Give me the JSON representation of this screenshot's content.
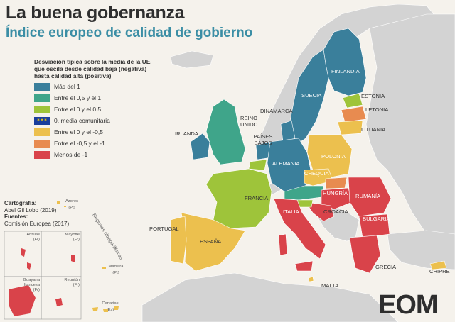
{
  "title": "La buena gobernanza",
  "subtitle": "Índice europeo de calidad de gobierno",
  "legend": {
    "title": "Desviación típica sobre la media de la UE, que oscila desde calidad baja (negativa) hasta calidad alta (positiva)",
    "items": [
      {
        "label": "Más del 1",
        "color": "#3a7f9b"
      },
      {
        "label": "Entre el 0,5 y el 1",
        "color": "#3fa58a"
      },
      {
        "label": "Entre el 0 y el 0.5",
        "color": "#9ec43a"
      },
      {
        "label": "0, media comunitaria",
        "color": "#1a3e9c"
      },
      {
        "label": "Entre el 0 y el -0,5",
        "color": "#ecc04e"
      },
      {
        "label": "Entre el -0,5 y el -1",
        "color": "#e88b50"
      },
      {
        "label": "Menos de -1",
        "color": "#d9434a"
      }
    ]
  },
  "credits": {
    "cartography_label": "Cartografía:",
    "cartography_value": "Abel Gil Lobo (2019)",
    "sources_label": "Fuentes:",
    "sources_value": "Comisión Europea (2017)"
  },
  "countries": {
    "finlandia": "FINLANDIA",
    "suecia": "SUECIA",
    "estonia": "ESTONIA",
    "letonia": "LETONIA",
    "lituania": "LITUANIA",
    "dinamarca": "DINAMARCA",
    "reino_unido": "REINO UNIDO",
    "irlanda": "IRLANDA",
    "paises_bajos": "PAÍSES BAJOS",
    "alemania": "ALEMANIA",
    "polonia": "POLONIA",
    "chequia": "CHEQUIA",
    "hungria": "HUNGRÍA",
    "rumania": "RUMANÍA",
    "bulgaria": "BULGARIA",
    "croacia": "CROACIA",
    "italia": "ITALIA",
    "francia": "FRANCIA",
    "espana": "ESPAÑA",
    "portugal": "PORTUGAL",
    "grecia": "GRECIA",
    "chipre": "CHIPRE",
    "malta": "MALTA"
  },
  "outermost": {
    "regions_label": "Regiones ultraperiféricas",
    "azores": "Azores (Pt)",
    "madeira": "Madeira (Pt)",
    "canarias": "Canarias (Es)",
    "antillas": "Antillas (Fr)",
    "mayotte": "Mayotte (Fr)",
    "guayana": "Guayana francesa (Fr)",
    "reunion": "Reunión (Fr)"
  },
  "logo": "EOM",
  "colors": {
    "background": "#f5f2ec",
    "non_eu_land": "#d3d3d3",
    "sea": "#f5f2ec",
    "border": "#ffffff"
  }
}
